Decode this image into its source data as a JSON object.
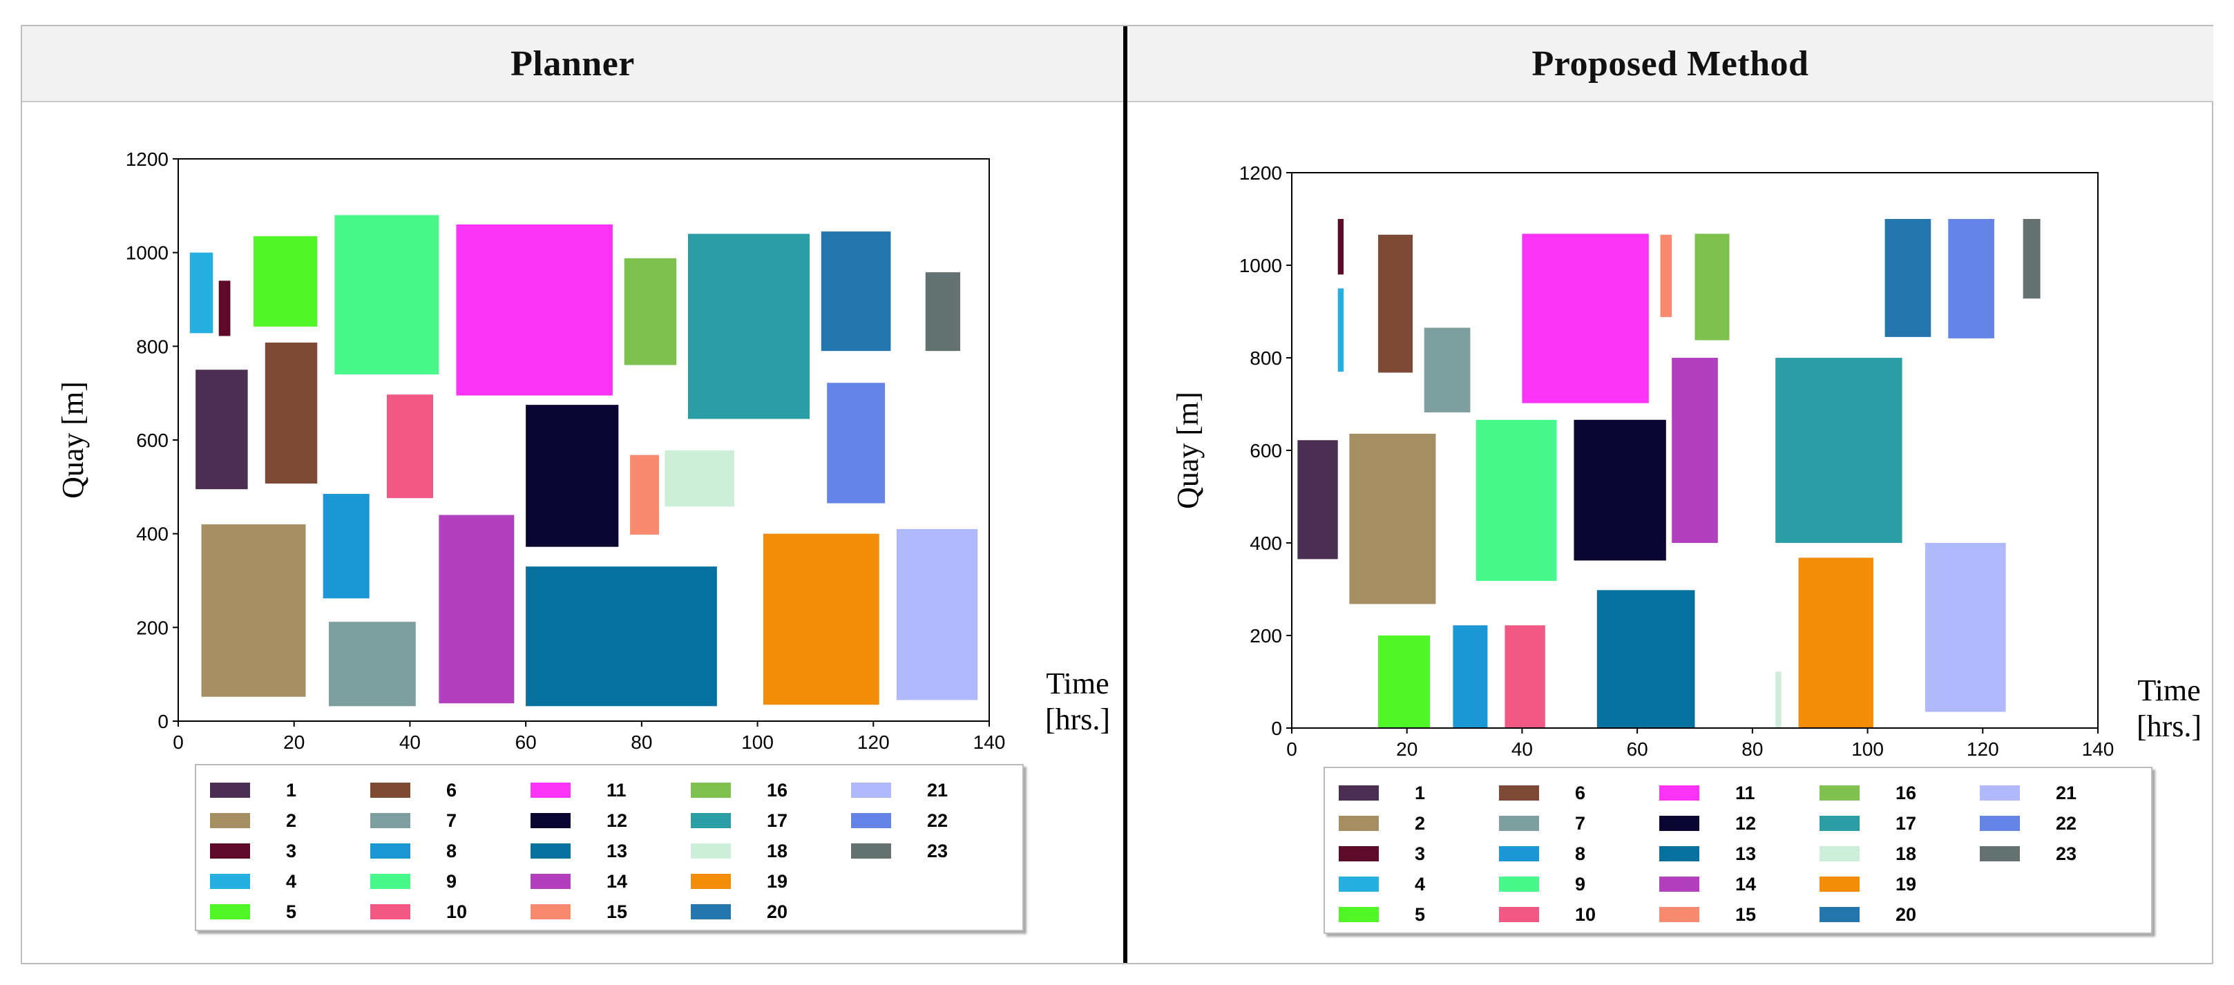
{
  "panels": {
    "left_title": "Planner",
    "right_title": "Proposed Method"
  },
  "chart_data": [
    {
      "type": "rect-gantt",
      "title": "Planner",
      "xlabel": "Time [hrs.]",
      "xlabel_lines": [
        "Time",
        "[hrs.]"
      ],
      "ylabel": "Quay [m]",
      "xlim": [
        0,
        140
      ],
      "ylim": [
        0,
        1200
      ],
      "xticks": [
        0,
        20,
        40,
        60,
        80,
        100,
        120,
        140
      ],
      "yticks": [
        0,
        200,
        400,
        600,
        800,
        1000,
        1200
      ],
      "rects": [
        {
          "id": "1",
          "x0": 3,
          "x1": 12,
          "y0": 495,
          "y1": 750
        },
        {
          "id": "2",
          "x0": 4,
          "x1": 22,
          "y0": 52,
          "y1": 420
        },
        {
          "id": "3",
          "x0": 7,
          "x1": 9,
          "y0": 822,
          "y1": 940
        },
        {
          "id": "4",
          "x0": 2,
          "x1": 6,
          "y0": 828,
          "y1": 1000
        },
        {
          "id": "5",
          "x0": 13,
          "x1": 24,
          "y0": 842,
          "y1": 1035
        },
        {
          "id": "6",
          "x0": 15,
          "x1": 24,
          "y0": 507,
          "y1": 808
        },
        {
          "id": "7",
          "x0": 26,
          "x1": 41,
          "y0": 32,
          "y1": 212
        },
        {
          "id": "8",
          "x0": 25,
          "x1": 33,
          "y0": 262,
          "y1": 485
        },
        {
          "id": "9",
          "x0": 27,
          "x1": 45,
          "y0": 740,
          "y1": 1080
        },
        {
          "id": "10",
          "x0": 36,
          "x1": 44,
          "y0": 476,
          "y1": 697
        },
        {
          "id": "11",
          "x0": 48,
          "x1": 75,
          "y0": 695,
          "y1": 1060
        },
        {
          "id": "12",
          "x0": 60,
          "x1": 76,
          "y0": 372,
          "y1": 675
        },
        {
          "id": "13",
          "x0": 60,
          "x1": 93,
          "y0": 32,
          "y1": 330
        },
        {
          "id": "14",
          "x0": 45,
          "x1": 58,
          "y0": 38,
          "y1": 440
        },
        {
          "id": "15",
          "x0": 78,
          "x1": 83,
          "y0": 398,
          "y1": 568
        },
        {
          "id": "16",
          "x0": 77,
          "x1": 86,
          "y0": 760,
          "y1": 988
        },
        {
          "id": "17",
          "x0": 88,
          "x1": 109,
          "y0": 645,
          "y1": 1040
        },
        {
          "id": "18",
          "x0": 84,
          "x1": 96,
          "y0": 458,
          "y1": 578
        },
        {
          "id": "19",
          "x0": 101,
          "x1": 121,
          "y0": 35,
          "y1": 400
        },
        {
          "id": "20",
          "x0": 111,
          "x1": 123,
          "y0": 790,
          "y1": 1045
        },
        {
          "id": "21",
          "x0": 124,
          "x1": 138,
          "y0": 45,
          "y1": 410
        },
        {
          "id": "22",
          "x0": 112,
          "x1": 122,
          "y0": 465,
          "y1": 722
        },
        {
          "id": "23",
          "x0": 129,
          "x1": 135,
          "y0": 790,
          "y1": 958
        }
      ]
    },
    {
      "type": "rect-gantt",
      "title": "Proposed Method",
      "xlabel": "Time [hrs.]",
      "xlabel_lines": [
        "Time",
        "[hrs.]"
      ],
      "ylabel": "Quay [m]",
      "xlim": [
        0,
        140
      ],
      "ylim": [
        0,
        1200
      ],
      "xticks": [
        0,
        20,
        40,
        60,
        80,
        100,
        120,
        140
      ],
      "yticks": [
        0,
        200,
        400,
        600,
        800,
        1000,
        1200
      ],
      "rects": [
        {
          "id": "1",
          "x0": 1,
          "x1": 8,
          "y0": 365,
          "y1": 622
        },
        {
          "id": "2",
          "x0": 10,
          "x1": 25,
          "y0": 268,
          "y1": 636
        },
        {
          "id": "3",
          "x0": 8,
          "x1": 9,
          "y0": 980,
          "y1": 1100
        },
        {
          "id": "4",
          "x0": 8,
          "x1": 9,
          "y0": 770,
          "y1": 950
        },
        {
          "id": "5",
          "x0": 15,
          "x1": 24,
          "y0": 0,
          "y1": 200
        },
        {
          "id": "6",
          "x0": 15,
          "x1": 21,
          "y0": 768,
          "y1": 1066
        },
        {
          "id": "7",
          "x0": 23,
          "x1": 31,
          "y0": 682,
          "y1": 865
        },
        {
          "id": "8",
          "x0": 28,
          "x1": 34,
          "y0": 0,
          "y1": 222
        },
        {
          "id": "9",
          "x0": 32,
          "x1": 46,
          "y0": 318,
          "y1": 666
        },
        {
          "id": "10",
          "x0": 37,
          "x1": 44,
          "y0": 0,
          "y1": 222
        },
        {
          "id": "11",
          "x0": 40,
          "x1": 62,
          "y0": 702,
          "y1": 1068
        },
        {
          "id": "12",
          "x0": 49,
          "x1": 65,
          "y0": 362,
          "y1": 666
        },
        {
          "id": "13",
          "x0": 53,
          "x1": 70,
          "y0": 0,
          "y1": 298
        },
        {
          "id": "14",
          "x0": 66,
          "x1": 74,
          "y0": 400,
          "y1": 800
        },
        {
          "id": "15",
          "x0": 64,
          "x1": 66,
          "y0": 888,
          "y1": 1066
        },
        {
          "id": "16",
          "x0": 70,
          "x1": 76,
          "y0": 838,
          "y1": 1068
        },
        {
          "id": "17",
          "x0": 84,
          "x1": 106,
          "y0": 400,
          "y1": 800
        },
        {
          "id": "18",
          "x0": 84,
          "x1": 85,
          "y0": 0,
          "y1": 122
        },
        {
          "id": "19",
          "x0": 88,
          "x1": 101,
          "y0": 0,
          "y1": 368
        },
        {
          "id": "20",
          "x0": 103,
          "x1": 111,
          "y0": 845,
          "y1": 1100
        },
        {
          "id": "21",
          "x0": 110,
          "x1": 124,
          "y0": 35,
          "y1": 400
        },
        {
          "id": "22",
          "x0": 114,
          "x1": 122,
          "y0": 842,
          "y1": 1100
        },
        {
          "id": "23",
          "x0": 127,
          "x1": 130,
          "y0": 928,
          "y1": 1100
        }
      ]
    }
  ],
  "legend": [
    {
      "label": "1",
      "color": "#4b2f52"
    },
    {
      "label": "2",
      "color": "#a68e63"
    },
    {
      "label": "3",
      "color": "#5e0b2a"
    },
    {
      "label": "4",
      "color": "#26afe1"
    },
    {
      "label": "5",
      "color": "#51f627"
    },
    {
      "label": "6",
      "color": "#7e4a36"
    },
    {
      "label": "7",
      "color": "#7e9f9f"
    },
    {
      "label": "8",
      "color": "#1b97d6"
    },
    {
      "label": "9",
      "color": "#48f88a"
    },
    {
      "label": "10",
      "color": "#f25884"
    },
    {
      "label": "11",
      "color": "#fb33f6"
    },
    {
      "label": "12",
      "color": "#0b0631"
    },
    {
      "label": "13",
      "color": "#06709f"
    },
    {
      "label": "14",
      "color": "#b240be"
    },
    {
      "label": "15",
      "color": "#f88b6f"
    },
    {
      "label": "16",
      "color": "#7fc14f"
    },
    {
      "label": "17",
      "color": "#2b9da5"
    },
    {
      "label": "18",
      "color": "#cdeed8"
    },
    {
      "label": "19",
      "color": "#f38d08"
    },
    {
      "label": "20",
      "color": "#2476ae"
    },
    {
      "label": "21",
      "color": "#b0b9fb"
    },
    {
      "label": "22",
      "color": "#6584e8"
    },
    {
      "label": "23",
      "color": "#637270"
    }
  ]
}
